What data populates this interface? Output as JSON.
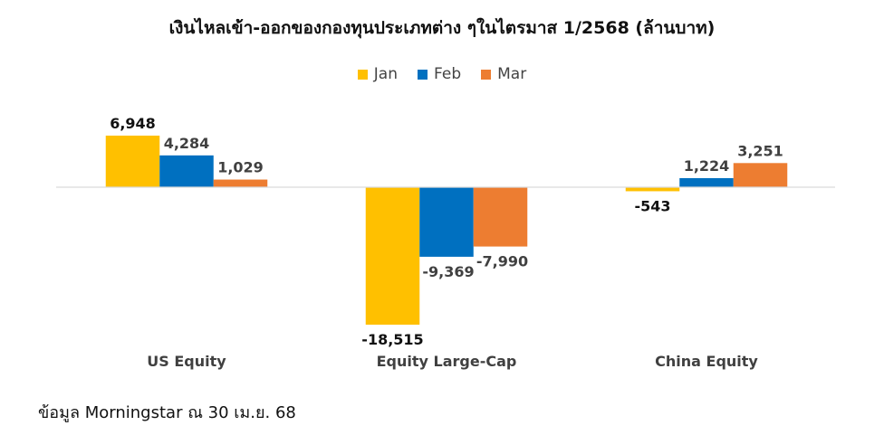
{
  "colors": {
    "Jan": "#FFC000",
    "Feb": "#0070C0",
    "Mar": "#ED7D31"
  },
  "source_note": "ข้อมูล Morningstar ณ 30 เม.ย. 68",
  "chart_data": {
    "type": "bar",
    "title": "เงินไหลเข้า-ออกของกองทุนประเภทต่าง ๆในไตรมาส 1/2568 (ล้านบาท)",
    "categories": [
      "US Equity",
      "Equity Large-Cap",
      "China Equity"
    ],
    "series": [
      {
        "name": "Jan",
        "values": [
          6948,
          -18515,
          -543
        ],
        "labels": [
          "6,948",
          "-18,515",
          "-543"
        ]
      },
      {
        "name": "Feb",
        "values": [
          4284,
          -9369,
          1224
        ],
        "labels": [
          "4,284",
          "-9,369",
          "1,224"
        ]
      },
      {
        "name": "Mar",
        "values": [
          1029,
          -7990,
          3251
        ],
        "labels": [
          "1,029",
          "-7,990",
          "3,251"
        ]
      }
    ],
    "legend_position": "top",
    "grid": false
  }
}
